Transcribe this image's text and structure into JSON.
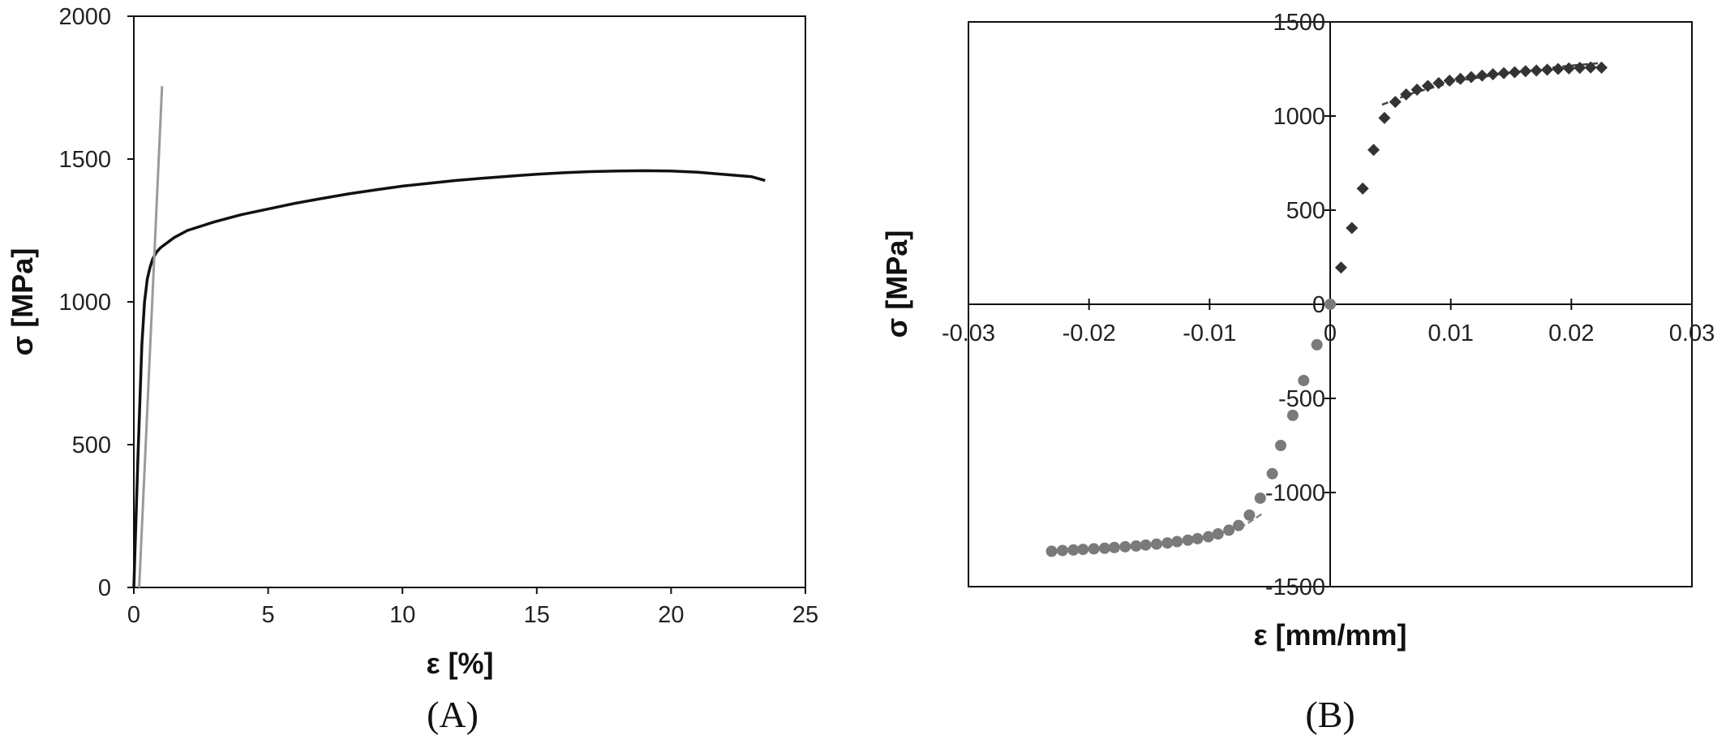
{
  "chart_data": [
    {
      "type": "line",
      "panel_label": "(A)",
      "xlabel": "ε [%]",
      "ylabel": "σ [MPa]",
      "xlim": [
        0,
        25
      ],
      "ylim": [
        0,
        2000
      ],
      "xticks": [
        "0",
        "5",
        "10",
        "15",
        "20",
        "25"
      ],
      "yticks": [
        "0",
        "500",
        "1000",
        "1500",
        "2000"
      ],
      "grid": false,
      "legend": "none",
      "series": [
        {
          "color": "#111111",
          "x": [
            0,
            0.15,
            0.3,
            0.4,
            0.5,
            0.6,
            0.7,
            0.85,
            1.0,
            1.5,
            2,
            3,
            4,
            5,
            6,
            7,
            8,
            9,
            10,
            11,
            12,
            13,
            14,
            15,
            16,
            17,
            18,
            19,
            20,
            21,
            22,
            23,
            23.5
          ],
          "y": [
            0,
            450,
            850,
            1000,
            1080,
            1120,
            1150,
            1175,
            1190,
            1225,
            1250,
            1280,
            1305,
            1325,
            1345,
            1362,
            1378,
            1392,
            1405,
            1415,
            1425,
            1433,
            1440,
            1447,
            1452,
            1456,
            1458,
            1459,
            1458,
            1454,
            1446,
            1438,
            1425
          ]
        },
        {
          "color": "#9a9a9a",
          "x": [
            0.2,
            1.05
          ],
          "y": [
            0,
            1755
          ]
        }
      ]
    },
    {
      "type": "scatter",
      "panel_label": "(B)",
      "xlabel": "ε [mm/mm]",
      "ylabel": "σ [MPa]",
      "xlim": [
        -0.03,
        0.03
      ],
      "ylim": [
        -1500,
        1500
      ],
      "xticks": [
        "-0.03",
        "-0.02",
        "-0.01",
        "0",
        "0.01",
        "0.02",
        "0.03"
      ],
      "yticks": [
        "-1500",
        "-1000",
        "-500",
        "0",
        "500",
        "1000",
        "1500"
      ],
      "grid": false,
      "legend": "none",
      "series": [
        {
          "marker": "diamond",
          "color": "#333333",
          "x": [
            0,
            0.0009,
            0.0018,
            0.0027,
            0.0036,
            0.0045,
            0.0054,
            0.0063,
            0.0072,
            0.0081,
            0.009,
            0.0099,
            0.0108,
            0.0117,
            0.0126,
            0.0135,
            0.0144,
            0.0153,
            0.0162,
            0.0171,
            0.018,
            0.0189,
            0.0198,
            0.0207,
            0.0216,
            0.0225
          ],
          "y": [
            0,
            195,
            405,
            615,
            820,
            990,
            1075,
            1115,
            1140,
            1160,
            1175,
            1188,
            1198,
            1207,
            1215,
            1222,
            1228,
            1233,
            1238,
            1242,
            1246,
            1250,
            1253,
            1256,
            1258,
            1257
          ]
        },
        {
          "marker": "circle",
          "color": "#7a7a7a",
          "x": [
            0,
            -0.0011,
            -0.0022,
            -0.0031,
            -0.0041,
            -0.0048,
            -0.0058,
            -0.0067,
            -0.0076,
            -0.0084,
            -0.0093,
            -0.0101,
            -0.011,
            -0.0118,
            -0.0127,
            -0.0135,
            -0.0144,
            -0.0153,
            -0.0161,
            -0.017,
            -0.0179,
            -0.0187,
            -0.0196,
            -0.0205,
            -0.0213,
            -0.0222,
            -0.0231
          ],
          "y": [
            0,
            -215,
            -405,
            -590,
            -750,
            -900,
            -1030,
            -1120,
            -1175,
            -1200,
            -1220,
            -1235,
            -1245,
            -1253,
            -1261,
            -1268,
            -1274,
            -1279,
            -1284,
            -1288,
            -1292,
            -1296,
            -1299,
            -1302,
            -1305,
            -1308,
            -1312
          ]
        }
      ],
      "fit_lines": [
        {
          "color": "#444444",
          "x": [
            0.0043,
            0.0055,
            0.007,
            0.009,
            0.011,
            0.014,
            0.017,
            0.02,
            0.0225
          ],
          "y": [
            1060,
            1090,
            1125,
            1160,
            1190,
            1222,
            1248,
            1268,
            1282
          ]
        },
        {
          "color": "#888888",
          "x": [
            -0.0057,
            -0.007,
            -0.009,
            -0.011,
            -0.014,
            -0.017,
            -0.02,
            -0.0232
          ],
          "y": [
            -1115,
            -1170,
            -1215,
            -1242,
            -1265,
            -1283,
            -1297,
            -1310
          ]
        }
      ]
    }
  ]
}
